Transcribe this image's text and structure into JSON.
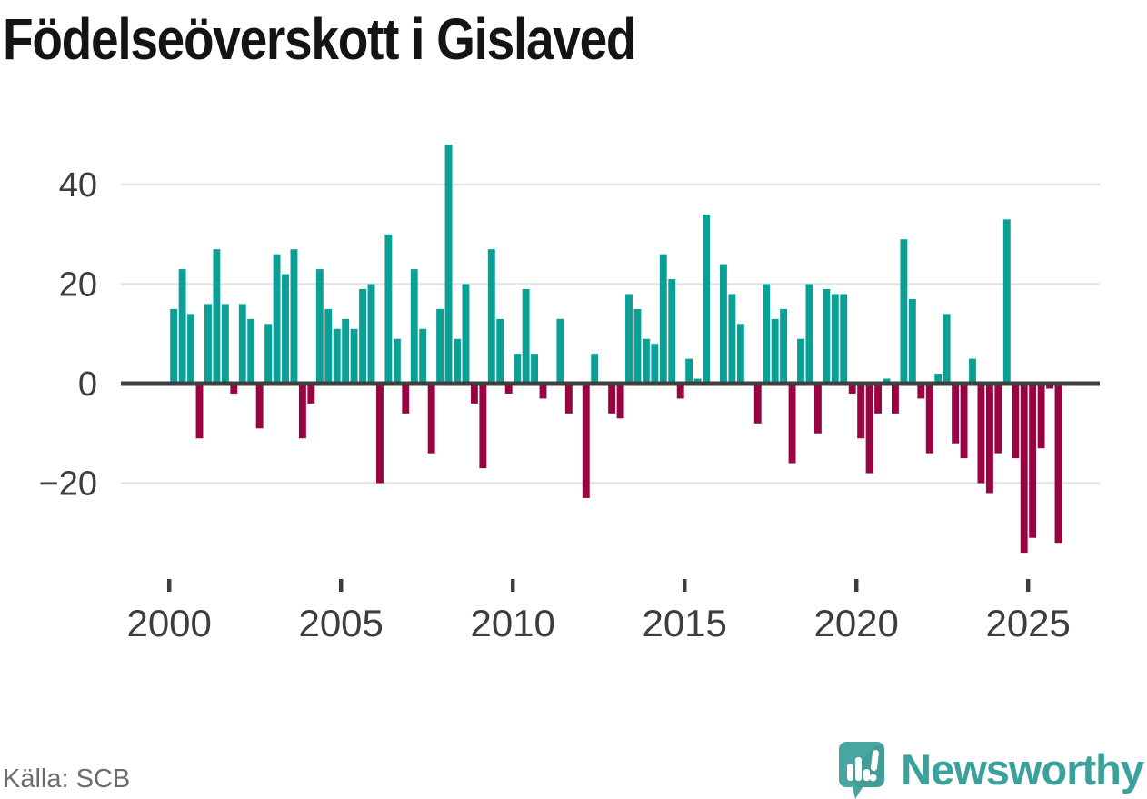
{
  "title": "Födelseöverskott i Gislaved",
  "source": "Källa: SCB",
  "branding": {
    "name": "Newsworthy"
  },
  "chart_data": {
    "type": "bar",
    "title": "Födelseöverskott i Gislaved",
    "frequency": "quarterly",
    "start_period": "2000-Q1",
    "end_period": "2025-Q4",
    "values": [
      15,
      23,
      14,
      -11,
      16,
      27,
      16,
      -2,
      16,
      13,
      -9,
      12,
      26,
      22,
      27,
      -11,
      -4,
      23,
      15,
      11,
      13,
      11,
      19,
      20,
      -20,
      30,
      9,
      -6,
      23,
      11,
      -14,
      15,
      48,
      9,
      20,
      -4,
      -17,
      27,
      13,
      -2,
      6,
      19,
      6,
      -3,
      0,
      13,
      -6,
      0,
      -23,
      6,
      0,
      -6,
      -7,
      18,
      15,
      9,
      8,
      26,
      21,
      -3,
      5,
      1,
      34,
      0,
      24,
      18,
      12,
      0,
      -8,
      20,
      13,
      15,
      -16,
      9,
      20,
      -10,
      19,
      18,
      18,
      -2,
      -11,
      -18,
      -6,
      1,
      -6,
      29,
      17,
      -3,
      -14,
      2,
      14,
      -12,
      -15,
      5,
      -20,
      -22,
      -14,
      33,
      -15,
      -34,
      -31,
      -13,
      -1,
      -32
    ],
    "x_tick_labels": [
      "2000",
      "2005",
      "2010",
      "2015",
      "2020",
      "2025"
    ],
    "y_ticks": [
      40,
      20,
      0,
      -20
    ],
    "y_tick_labels": [
      "40",
      "20",
      "0",
      "−20"
    ],
    "ylim": [
      -36,
      50
    ],
    "grid": "horizontal",
    "legend": "none",
    "colors": {
      "positive": "#0aa096",
      "negative": "#9a0342",
      "zero_line": "#3f3f3f",
      "grid": "#e3e3e3",
      "axis_text": "#3d3d3d",
      "brand_teal": "#3ba19d",
      "logo_teal": "#47a6a0"
    }
  }
}
